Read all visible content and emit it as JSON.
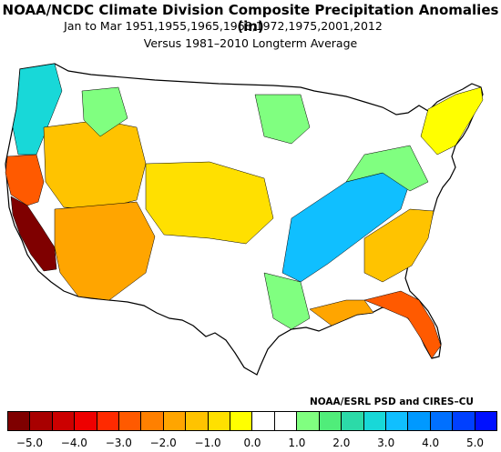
{
  "title": "NOAA/NCDC Climate Division Composite Precipitation Anomalies (in)",
  "subtitle": "Jan to Mar  1951,1955,1965,1968,1972,1975,2001,2012",
  "subtitle2": "Versus 1981–2010 Longterm Average",
  "credit": "NOAA/ESRL PSD and CIRES–CU",
  "colorbar": {
    "colors": [
      "#7f0000",
      "#a80000",
      "#cc0000",
      "#ee0000",
      "#ff2a00",
      "#ff5a00",
      "#ff8000",
      "#ffa500",
      "#ffc300",
      "#ffe000",
      "#ffff00",
      "#ffffff",
      "#ffffff",
      "#80ff80",
      "#50ed7a",
      "#2cdaa8",
      "#18d8d8",
      "#10bfff",
      "#0099ff",
      "#0070ff",
      "#0040ff",
      "#0010ff"
    ],
    "tick_labels": [
      "−5.0",
      "−4.0",
      "−3.0",
      "−2.0",
      "−1.0",
      "0.0",
      "1.0",
      "2.0",
      "3.0",
      "4.0",
      "5.0"
    ],
    "range": [
      -5.5,
      5.5
    ],
    "tick_values": [
      -5,
      -4,
      -3,
      -2,
      -1,
      0,
      1,
      2,
      3,
      4,
      5
    ]
  },
  "map": {
    "region": "Contiguous United States",
    "regions": [
      {
        "name": "pacific-northwest-coast",
        "color": "#18d8d8"
      },
      {
        "name": "northern-california-coast",
        "color": "#ff5a00"
      },
      {
        "name": "southern-california-coast",
        "color": "#7f0000"
      },
      {
        "name": "great-basin",
        "color": "#ffc300"
      },
      {
        "name": "southwest",
        "color": "#ffa500"
      },
      {
        "name": "central-plains",
        "color": "#ffe000"
      },
      {
        "name": "northern-plains-upper-midwest",
        "color": "#80ff80"
      },
      {
        "name": "tennessee-ohio-valley",
        "color": "#10bfff"
      },
      {
        "name": "northeast",
        "color": "#ffff00"
      },
      {
        "name": "southeast",
        "color": "#ffc300"
      },
      {
        "name": "florida",
        "color": "#ff5a00"
      },
      {
        "name": "gulf-coast",
        "color": "#ffa500"
      }
    ]
  }
}
